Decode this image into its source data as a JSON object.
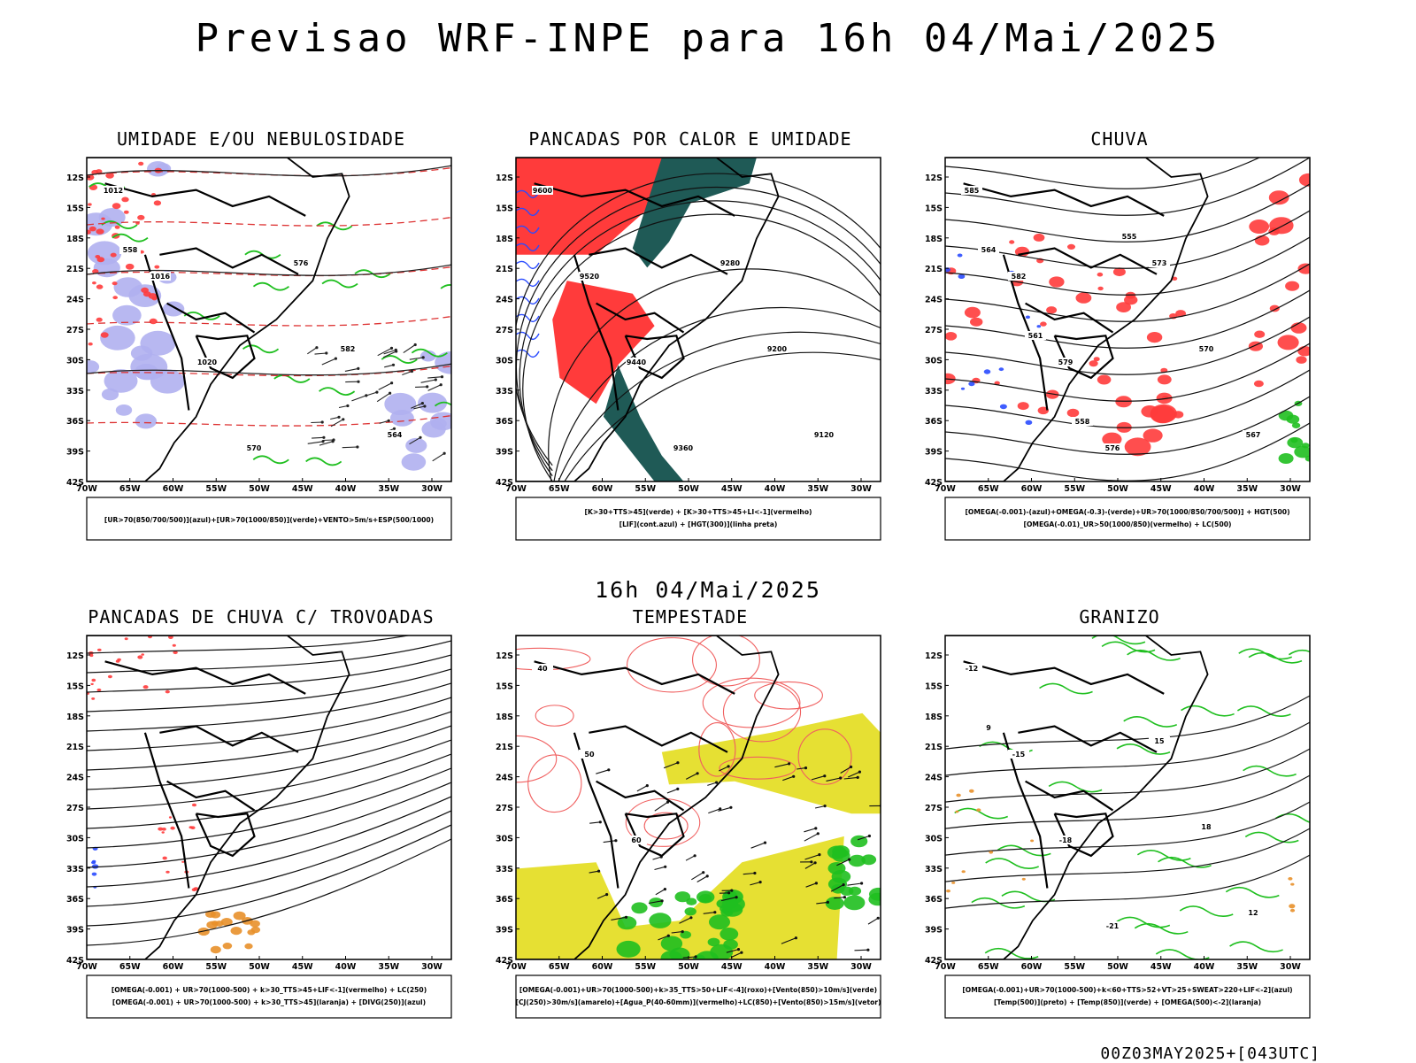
{
  "title": "Previsao WRF-INPE  para 16h 04/Mai/2025",
  "mid_label": "16h 04/Mai/2025",
  "footer": "00Z03MAY2025+[043UTC]",
  "colors": {
    "red": "#ff3b3b",
    "green": "#1fbf1f",
    "blue": "#2a4bff",
    "lavender": "#b0b0f0",
    "teal": "#1f5a56",
    "yellow": "#e6e033",
    "orange": "#e8902a"
  },
  "axis": {
    "lat_labels": [
      "12S",
      "15S",
      "18S",
      "21S",
      "24S",
      "27S",
      "30S",
      "33S",
      "36S",
      "39S",
      "42S"
    ],
    "lon_labels": [
      "70W",
      "65W",
      "60W",
      "55W",
      "50W",
      "45W",
      "40W",
      "35W",
      "30W"
    ]
  },
  "panels": [
    {
      "title": "UMIDADE E/OU NEBULOSIDADE",
      "legend": [
        "[UR>70(850/700/500)](azul)+[UR>70(1000/850)](verde)+VENTO>5m/s+ESP(500/1000)"
      ],
      "contour_labels": [
        "1012",
        "1016",
        "1020",
        "570",
        "576",
        "582",
        "564",
        "558"
      ]
    },
    {
      "title": "PANCADAS POR CALOR E UMIDADE",
      "legend": [
        "[K>30+TTS>45](verde) + [K>30+TTS>45+LI<-1](vermelho)",
        "[LIF](cont.azul) + [HGT(300)](linha preta)"
      ],
      "contour_labels": [
        "9600",
        "9520",
        "9440",
        "9360",
        "9280",
        "9200",
        "9120"
      ]
    },
    {
      "title": "CHUVA",
      "legend": [
        "[OMEGA(-0.001)-(azul)+OMEGA(-0.3)-(verde)+UR>70(1000/850/700/500)] + HGT(500)",
        "[OMEGA(-0.01)_UR>50(1000/850)(vermelho) + LC(500)"
      ],
      "contour_labels": [
        "585",
        "582",
        "579",
        "576",
        "573",
        "570",
        "567",
        "564",
        "561",
        "558",
        "555"
      ]
    },
    {
      "title": "PANCADAS DE CHUVA C/ TROVOADAS",
      "legend": [
        "[OMEGA(-0.001) + UR>70(1000-500) + k>30_TTS>45+LIF<-1](vermelho) + LC(250)",
        "[OMEGA(-0.001) + UR>70(1000-500) + k>30_TTS>45](laranja) + [DIVG(250)](azul)"
      ],
      "contour_labels": []
    },
    {
      "title": "TEMPESTADE",
      "legend": [
        "[OMEGA(-0.001)+UR>70(1000-500)+k>35_TTS>50+LIF<-4](roxo)+[Vento(850)>10m/s](verde)",
        "[CJ(250)>30m/s](amarelo)+[Agua_P(40-60mm)](vermelho)+LC(850)+[Vento(850)>15m/s](vetor)"
      ],
      "contour_labels": [
        "40",
        "50",
        "60"
      ]
    },
    {
      "title": "GRANIZO",
      "legend": [
        "[OMEGA(-0.001)+UR>70(1000-500)+k<60+TTS>52+VT>25+SWEAT>220+LIF<-2](azul)",
        "[Temp(500)](preto) + [Temp(850)](verde) + [OMEGA(500)<-2](laranja)"
      ],
      "contour_labels": [
        "-12",
        "-15",
        "-18",
        "-21",
        "15",
        "18",
        "12",
        "9"
      ]
    }
  ]
}
